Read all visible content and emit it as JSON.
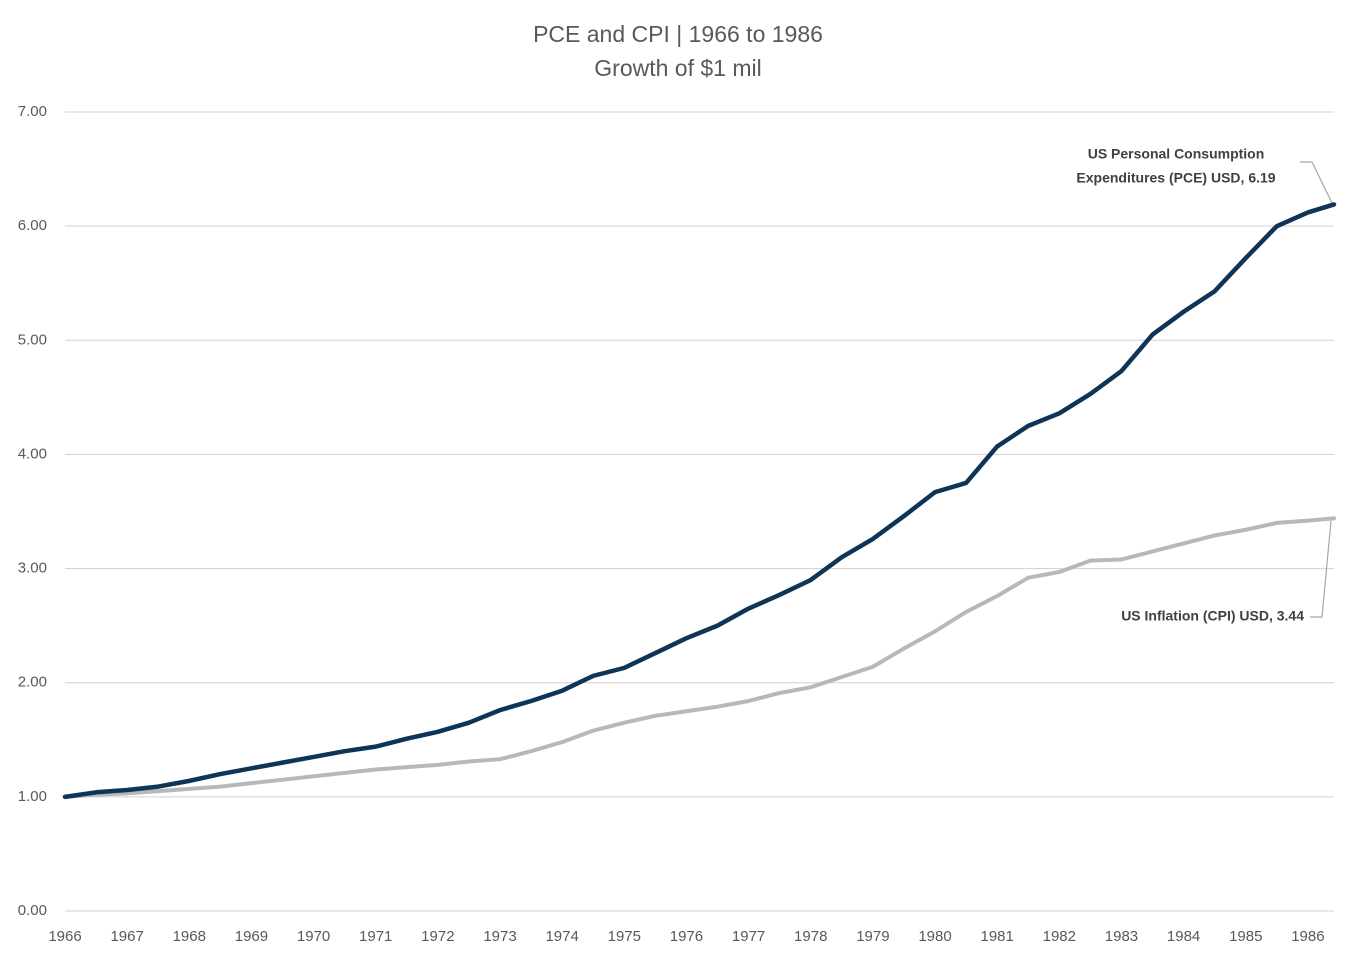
{
  "chart_data": {
    "type": "line",
    "title": "PCE and CPI | 1966 to 1986",
    "subtitle": "Growth of $1 mil",
    "x": [
      1966,
      1966.5,
      1967,
      1967.5,
      1968,
      1968.5,
      1969,
      1969.5,
      1970,
      1970.5,
      1971,
      1971.5,
      1972,
      1972.5,
      1973,
      1973.5,
      1974,
      1974.5,
      1975,
      1975.5,
      1976,
      1976.5,
      1977,
      1977.5,
      1978,
      1978.5,
      1979,
      1979.5,
      1980,
      1980.5,
      1981,
      1981.5,
      1982,
      1982.5,
      1983,
      1983.5,
      1984,
      1984.5,
      1985,
      1985.5,
      1986,
      1986.42
    ],
    "series": [
      {
        "name": "US Personal Consumption Expenditures (PCE) USD",
        "color": "#0e3558",
        "values": [
          1.0,
          1.04,
          1.06,
          1.09,
          1.14,
          1.2,
          1.25,
          1.3,
          1.35,
          1.4,
          1.44,
          1.51,
          1.57,
          1.65,
          1.76,
          1.84,
          1.93,
          2.06,
          2.13,
          2.26,
          2.39,
          2.5,
          2.65,
          2.77,
          2.9,
          3.1,
          3.26,
          3.46,
          3.67,
          3.75,
          4.07,
          4.25,
          4.36,
          4.53,
          4.73,
          5.05,
          5.25,
          5.43,
          5.72,
          6.0,
          6.12,
          6.19
        ]
      },
      {
        "name": "US Inflation (CPI) USD",
        "color": "#b8b8b8",
        "values": [
          1.0,
          1.02,
          1.03,
          1.05,
          1.07,
          1.09,
          1.12,
          1.15,
          1.18,
          1.21,
          1.24,
          1.26,
          1.28,
          1.31,
          1.33,
          1.4,
          1.48,
          1.58,
          1.65,
          1.71,
          1.75,
          1.79,
          1.84,
          1.91,
          1.96,
          2.05,
          2.14,
          2.3,
          2.45,
          2.62,
          2.76,
          2.92,
          2.97,
          3.07,
          3.08,
          3.15,
          3.22,
          3.29,
          3.34,
          3.4,
          3.42,
          3.44
        ]
      }
    ],
    "annotations": [
      {
        "lines": [
          "US Personal Consumption",
          "Expenditures (PCE)  USD, 6.19"
        ]
      },
      {
        "lines": [
          "US Inflation (CPI) USD, 3.44"
        ]
      }
    ],
    "xlim": [
      1966,
      1986.42
    ],
    "xticks": [
      1966,
      1967,
      1968,
      1969,
      1970,
      1971,
      1972,
      1973,
      1974,
      1975,
      1976,
      1977,
      1978,
      1979,
      1980,
      1981,
      1982,
      1983,
      1984,
      1985,
      1986
    ],
    "ylim": [
      0,
      7
    ],
    "yticks": [
      {
        "value": 0,
        "label": "0.00"
      },
      {
        "value": 1,
        "label": "1.00"
      },
      {
        "value": 2,
        "label": "2.00"
      },
      {
        "value": 3,
        "label": "3.00"
      },
      {
        "value": 4,
        "label": "4.00"
      },
      {
        "value": 5,
        "label": "5.00"
      },
      {
        "value": 6,
        "label": "6.00"
      },
      {
        "value": 7,
        "label": "7.00"
      }
    ],
    "grid": true
  }
}
